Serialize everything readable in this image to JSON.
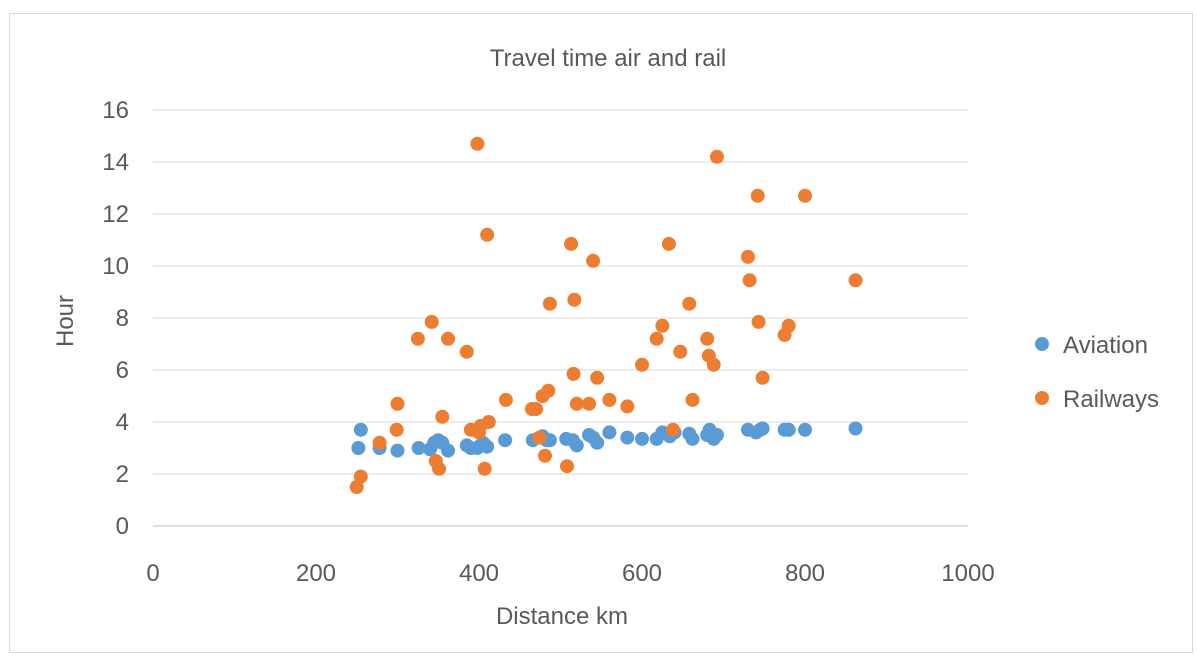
{
  "chart_data": {
    "type": "scatter",
    "title": "Travel time air and rail",
    "xlabel": "Distance km",
    "ylabel": "Hour",
    "xlim": [
      0,
      1000
    ],
    "ylim": [
      0,
      16
    ],
    "xticks": [
      0,
      200,
      400,
      600,
      800,
      1000
    ],
    "yticks": [
      0,
      2,
      4,
      6,
      8,
      10,
      12,
      14,
      16
    ],
    "grid": "horizontal",
    "legend": "right",
    "series": [
      {
        "name": "Aviation",
        "color": "#5b9bd5",
        "points": [
          [
            252,
            3.0
          ],
          [
            255,
            3.7
          ],
          [
            278,
            3.0
          ],
          [
            300,
            2.9
          ],
          [
            326,
            3.0
          ],
          [
            340,
            2.95
          ],
          [
            345,
            3.2
          ],
          [
            350,
            3.3
          ],
          [
            355,
            3.2
          ],
          [
            362,
            2.9
          ],
          [
            385,
            3.1
          ],
          [
            390,
            3.0
          ],
          [
            398,
            3.0
          ],
          [
            402,
            3.1
          ],
          [
            405,
            3.2
          ],
          [
            410,
            3.05
          ],
          [
            432,
            3.3
          ],
          [
            466,
            3.3
          ],
          [
            478,
            3.45
          ],
          [
            483,
            3.3
          ],
          [
            487,
            3.3
          ],
          [
            507,
            3.35
          ],
          [
            515,
            3.3
          ],
          [
            520,
            3.1
          ],
          [
            535,
            3.5
          ],
          [
            540,
            3.4
          ],
          [
            545,
            3.2
          ],
          [
            560,
            3.6
          ],
          [
            582,
            3.4
          ],
          [
            600,
            3.35
          ],
          [
            618,
            3.35
          ],
          [
            625,
            3.6
          ],
          [
            634,
            3.45
          ],
          [
            640,
            3.6
          ],
          [
            658,
            3.55
          ],
          [
            662,
            3.35
          ],
          [
            680,
            3.5
          ],
          [
            683,
            3.7
          ],
          [
            688,
            3.35
          ],
          [
            692,
            3.5
          ],
          [
            730,
            3.7
          ],
          [
            740,
            3.6
          ],
          [
            745,
            3.7
          ],
          [
            748,
            3.75
          ],
          [
            775,
            3.7
          ],
          [
            780,
            3.7
          ],
          [
            800,
            3.7
          ],
          [
            862,
            3.75
          ]
        ]
      },
      {
        "name": "Railways",
        "color": "#ed7d31",
        "points": [
          [
            250,
            1.5
          ],
          [
            255,
            1.9
          ],
          [
            278,
            3.2
          ],
          [
            299,
            3.7
          ],
          [
            300,
            4.7
          ],
          [
            325,
            7.2
          ],
          [
            342,
            7.85
          ],
          [
            347,
            2.5
          ],
          [
            351,
            2.2
          ],
          [
            355,
            4.2
          ],
          [
            362,
            7.2
          ],
          [
            385,
            6.7
          ],
          [
            390,
            3.7
          ],
          [
            398,
            14.7
          ],
          [
            400,
            3.6
          ],
          [
            402,
            3.85
          ],
          [
            407,
            2.2
          ],
          [
            410,
            11.2
          ],
          [
            412,
            4.0
          ],
          [
            433,
            4.85
          ],
          [
            465,
            4.5
          ],
          [
            470,
            4.5
          ],
          [
            474,
            3.4
          ],
          [
            478,
            5.0
          ],
          [
            481,
            2.7
          ],
          [
            485,
            5.2
          ],
          [
            487,
            8.55
          ],
          [
            508,
            2.3
          ],
          [
            513,
            10.85
          ],
          [
            516,
            5.85
          ],
          [
            517,
            8.7
          ],
          [
            520,
            4.7
          ],
          [
            535,
            4.7
          ],
          [
            540,
            10.2
          ],
          [
            545,
            5.7
          ],
          [
            560,
            4.85
          ],
          [
            582,
            4.6
          ],
          [
            600,
            6.2
          ],
          [
            618,
            7.2
          ],
          [
            625,
            7.7
          ],
          [
            633,
            10.85
          ],
          [
            638,
            3.7
          ],
          [
            647,
            6.7
          ],
          [
            658,
            8.55
          ],
          [
            662,
            4.85
          ],
          [
            680,
            7.2
          ],
          [
            682,
            6.55
          ],
          [
            688,
            6.2
          ],
          [
            692,
            14.2
          ],
          [
            730,
            10.35
          ],
          [
            732,
            9.45
          ],
          [
            742,
            12.7
          ],
          [
            743,
            7.85
          ],
          [
            748,
            5.7
          ],
          [
            775,
            7.35
          ],
          [
            780,
            7.7
          ],
          [
            800,
            12.7
          ],
          [
            862,
            9.45
          ]
        ]
      }
    ]
  }
}
